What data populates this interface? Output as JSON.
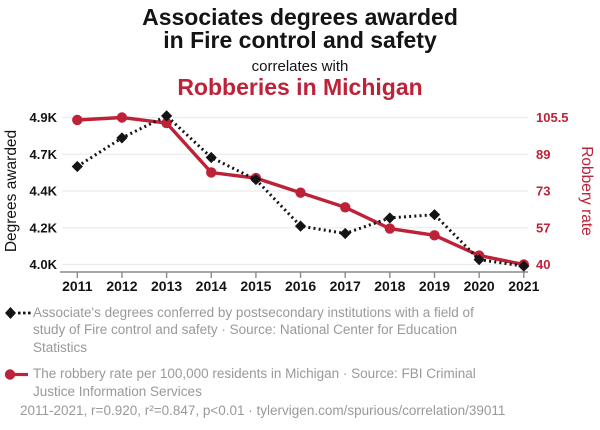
{
  "header": {
    "title": "Associates degrees awarded\nin Fire control and safety",
    "connector": "correlates with",
    "subtitle": "Robberies in Michigan"
  },
  "colors": {
    "accent_red": "#be2239",
    "text_black": "#141414",
    "caption_gray": "#999999",
    "grid_gray": "#ebebeb",
    "axis_gray": "#8a8a8a"
  },
  "chart_data": {
    "type": "line",
    "x": [
      2011,
      2012,
      2013,
      2014,
      2015,
      2016,
      2017,
      2018,
      2019,
      2020,
      2021
    ],
    "x_tick_labels": [
      "2011",
      "2012",
      "2013",
      "2014",
      "2015",
      "2016",
      "2017",
      "2018",
      "2019",
      "2020",
      "2021"
    ],
    "left_axis": {
      "label": "Degrees awarded",
      "tick_labels": [
        "4.9K",
        "4.7K",
        "4.4K",
        "4.2K",
        "4.0K"
      ],
      "range": [
        4000,
        4900
      ],
      "color": "#141414"
    },
    "right_axis": {
      "label": "Robbery rate",
      "tick_labels": [
        "105.5",
        "89",
        "73",
        "57",
        "40"
      ],
      "range": [
        40,
        105.5
      ],
      "color": "#be2239"
    },
    "series": [
      {
        "name": "The robbery rate per 100,000 residents in Michigan",
        "axis": "right",
        "style": "solid",
        "marker": "circle",
        "color": "#be2239",
        "values": [
          104.4,
          105.5,
          103,
          81,
          78.5,
          72,
          65.5,
          56,
          53,
          44,
          40
        ]
      },
      {
        "name": "Associate's degrees awarded in Fire control and safety",
        "axis": "left",
        "style": "dotted",
        "marker": "diamond",
        "color": "#141414",
        "values": [
          4600,
          4775,
          4910,
          4655,
          4520,
          4235,
          4190,
          4285,
          4305,
          4030,
          3990
        ]
      }
    ]
  },
  "legend": [
    {
      "text": "Associate's degrees conferred by postsecondary institutions with a field of\nstudy of Fire control and safety · Source: National Center for Education\nStatistics"
    },
    {
      "text": "The robbery rate per 100,000 residents in Michigan · Source: FBI Criminal\nJustice Information Services"
    }
  ],
  "footer": "2011-2021, r=0.920, r²=0.847, p<0.01 · tylervigen.com/spurious/correlation/39011"
}
